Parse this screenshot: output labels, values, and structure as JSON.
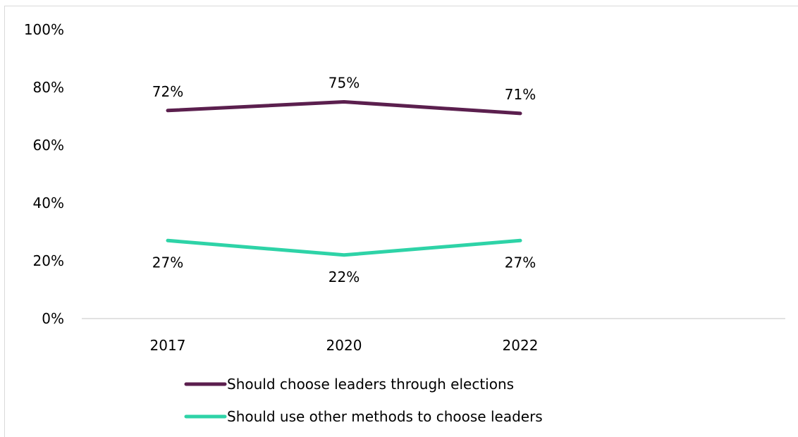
{
  "chart_data": {
    "type": "line",
    "categories": [
      "2017",
      "2020",
      "2022"
    ],
    "ylim": [
      0,
      100
    ],
    "yticks": [
      "0%",
      "20%",
      "40%",
      "60%",
      "80%",
      "100%"
    ],
    "grid": false,
    "legend_placement": "bottom",
    "series": [
      {
        "name": "Should choose leaders through elections",
        "values": [
          72,
          75,
          71
        ],
        "labels": [
          "72%",
          "75%",
          "71%"
        ],
        "color": "#5b1f4e",
        "label_position": "above"
      },
      {
        "name": "Should use other methods to choose leaders",
        "values": [
          27,
          22,
          27
        ],
        "labels": [
          "27%",
          "22%",
          "27%"
        ],
        "color": "#2ed3a7",
        "label_position": "below"
      }
    ]
  }
}
